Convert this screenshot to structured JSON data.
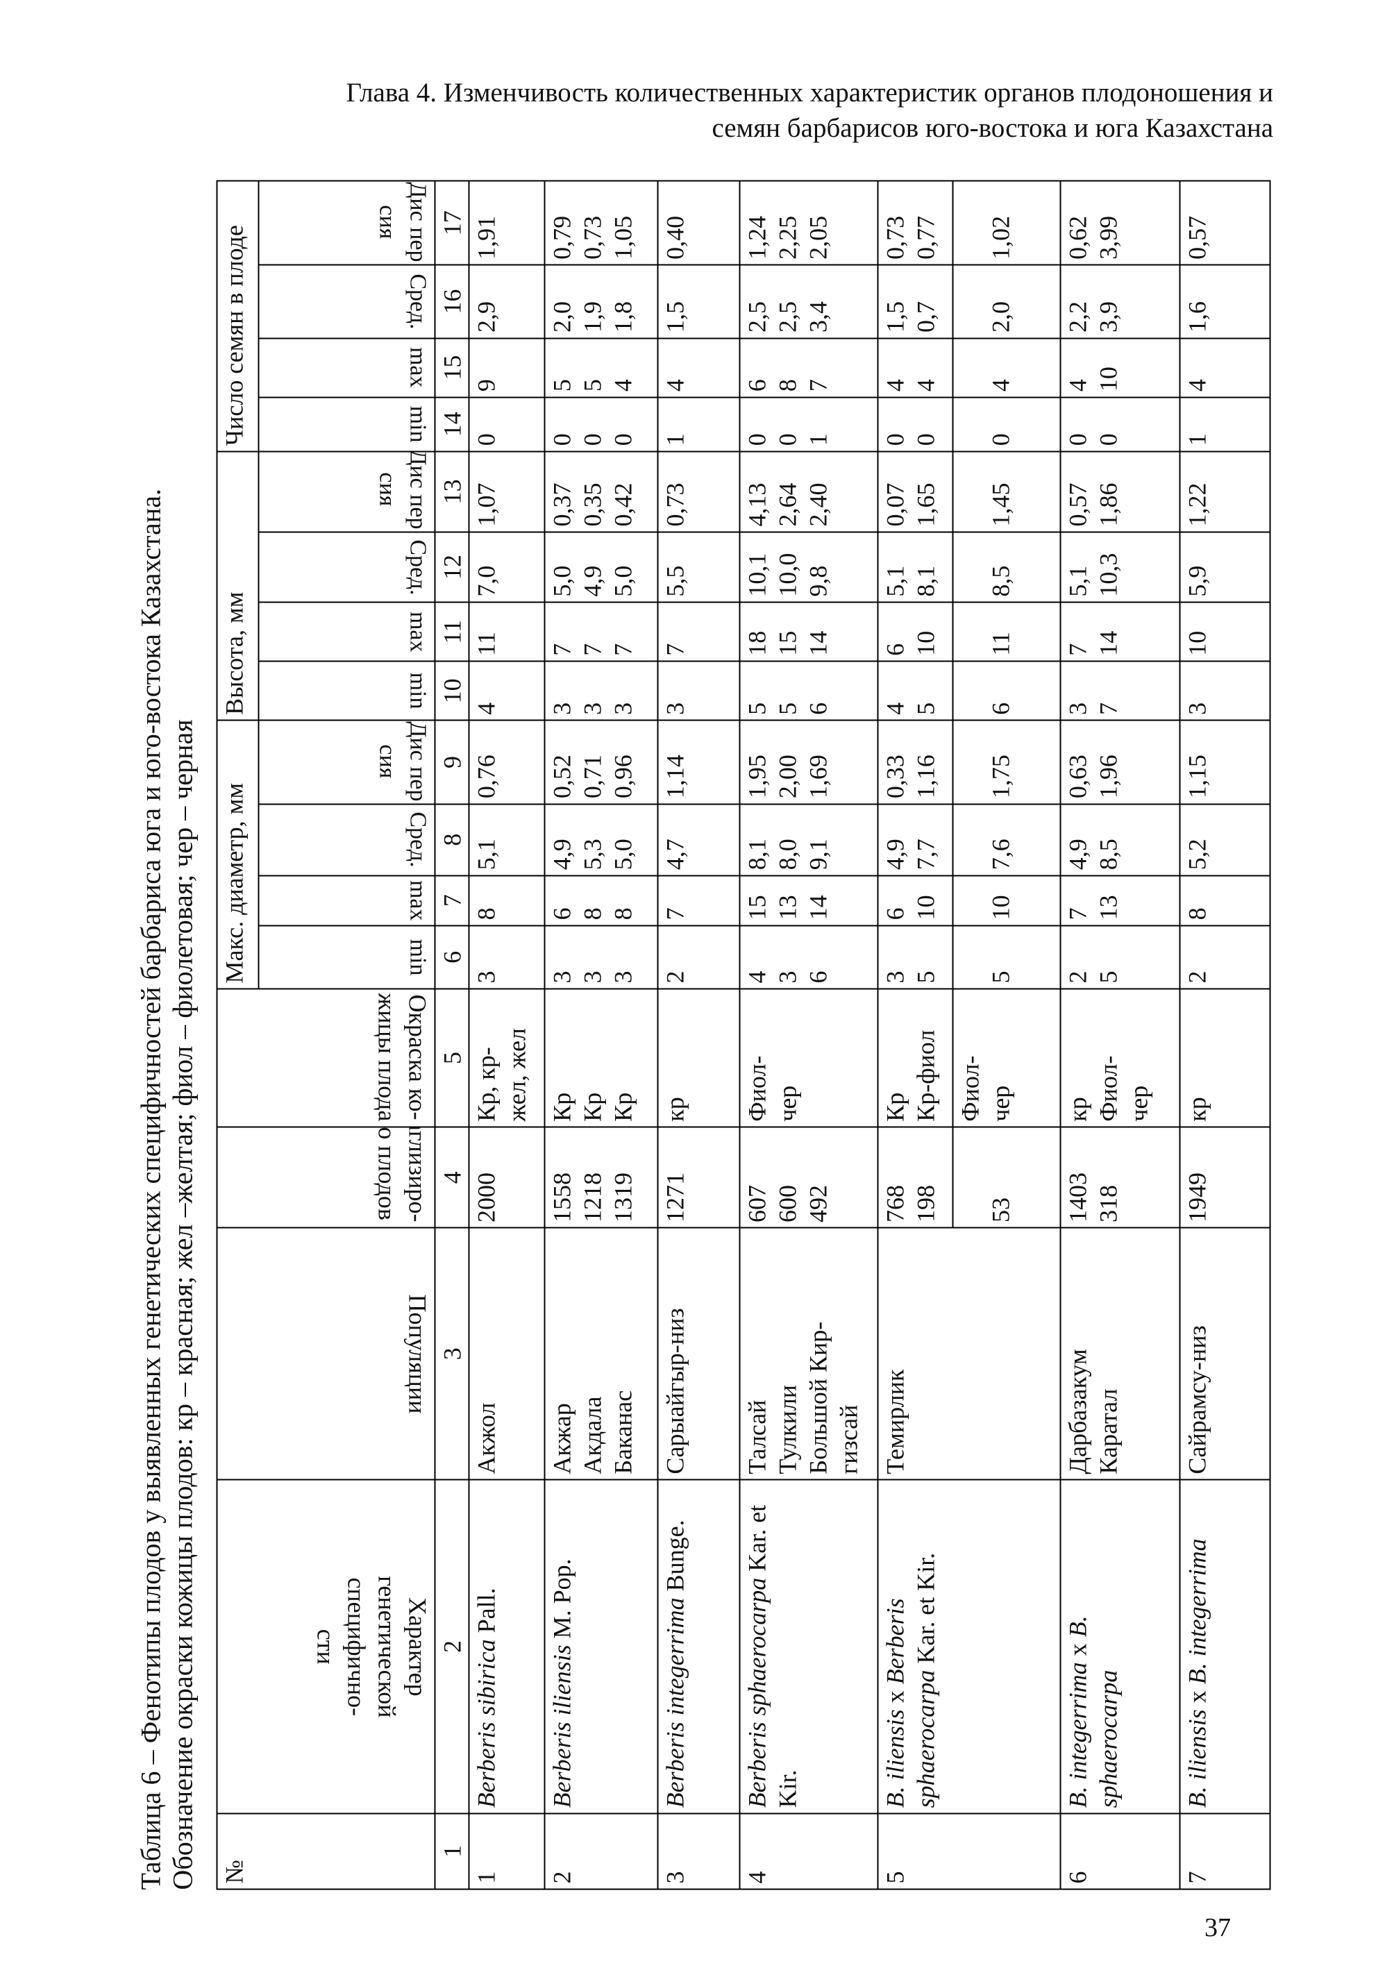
{
  "header": [
    "Глава 4. Изменчивость количественных характеристик органов плодоношения и",
    "семян барбарисов юго-востока и юга Казахстана"
  ],
  "caption": [
    "Таблица 6 – Фенотипы плодов у выявленных генетических специфичностей барбариса юга и юго-востока Казахстана.",
    "Обозначение окраски кожицы плодов: кр – красная; жел –желтая; фиол – фиолетовая; чер – черная"
  ],
  "page_number": "37",
  "table": {
    "head": {
      "no": "№",
      "character": [
        "Характер",
        "генетической",
        "специфично-",
        "сти"
      ],
      "populations": [
        "Популяции"
      ],
      "count": [
        "Праглизиро-",
        "вано плодов"
      ],
      "color": [
        "Окраска ко-",
        "жицы плода"
      ],
      "groups": [
        {
          "title": "Макс. диаметр, мм",
          "sub": [
            [
              "min"
            ],
            [
              "max"
            ],
            [
              "Сред."
            ],
            [
              "Дис пер",
              "сия"
            ]
          ]
        },
        {
          "title": "Высота, мм",
          "sub": [
            [
              "min"
            ],
            [
              "max"
            ],
            [
              "Сред."
            ],
            [
              "Дис пер",
              "сия"
            ]
          ]
        },
        {
          "title": "Число семян в плоде",
          "sub": [
            [
              "min"
            ],
            [
              "max"
            ],
            [
              "Сред."
            ],
            [
              "Дис пер",
              "сия"
            ]
          ]
        }
      ]
    },
    "numbers": [
      1,
      2,
      3,
      4,
      5,
      6,
      7,
      8,
      9,
      10,
      11,
      12,
      13,
      14,
      15,
      16,
      17
    ],
    "rows": [
      {
        "cells": [
          [
            "1"
          ],
          [
            {
              "text": "Berberis sibirica",
              "italic": true
            },
            {
              "text": " Pall.",
              "italic": false
            }
          ],
          [
            "Акжол"
          ],
          [
            "2000"
          ],
          [
            "Кр, кр-",
            "жел, жел"
          ],
          [
            "3"
          ],
          [
            "8"
          ],
          [
            "5,1"
          ],
          [
            "0,76"
          ],
          [
            "4"
          ],
          [
            "11"
          ],
          [
            "7,0"
          ],
          [
            "1,07"
          ],
          [
            "0"
          ],
          [
            "9"
          ],
          [
            "2,9"
          ],
          [
            "1,91"
          ]
        ]
      },
      {
        "cells": [
          [
            "2"
          ],
          [
            {
              "text": "Berberis iliensis",
              "italic": true
            },
            {
              "text": " M. Pop.",
              "italic": false
            }
          ],
          [
            "Акжар",
            "Акдала",
            "Баканас"
          ],
          [
            "1558",
            "1218",
            "1319"
          ],
          [
            "Кр",
            "Кр",
            "Кр"
          ],
          [
            "3",
            "3",
            "3"
          ],
          [
            "6",
            "8",
            "8"
          ],
          [
            "4,9",
            "5,3",
            "5,0"
          ],
          [
            "0,52",
            "0,71",
            "0,96"
          ],
          [
            "3",
            "3",
            "3"
          ],
          [
            "7",
            "7",
            "7"
          ],
          [
            "5,0",
            "4,9",
            "5,0"
          ],
          [
            "0,37",
            "0,35",
            "0,42"
          ],
          [
            "0",
            "0",
            "0"
          ],
          [
            "5",
            "5",
            "4"
          ],
          [
            "2,0",
            "1,9",
            "1,8"
          ],
          [
            "0,79",
            "0,73",
            "1,05"
          ]
        ]
      },
      {
        "cells": [
          [
            "3"
          ],
          [
            {
              "text": "Berberis integerrima",
              "italic": true
            },
            {
              "text": " Bunge.",
              "italic": false
            }
          ],
          [
            "Сарыайгыр-низ"
          ],
          [
            "1271"
          ],
          [
            "кр"
          ],
          [
            "2"
          ],
          [
            "7"
          ],
          [
            "4,7"
          ],
          [
            "1,14"
          ],
          [
            "3"
          ],
          [
            "7"
          ],
          [
            "5,5"
          ],
          [
            "0,73"
          ],
          [
            "1"
          ],
          [
            "4"
          ],
          [
            "1,5"
          ],
          [
            "0,40"
          ]
        ]
      },
      {
        "cells": [
          [
            "4"
          ],
          [
            {
              "text": "Berberis sphaerocarpa",
              "italic": true
            },
            {
              "text": " Kar. et Kir.",
              "italic": false
            }
          ],
          [
            "Талсай",
            "Тулкили",
            "Большой Кир-",
            "гизсай"
          ],
          [
            "607",
            "600",
            "492"
          ],
          [
            "Фиол-",
            "чер"
          ],
          [
            "4",
            "3",
            "6"
          ],
          [
            "15",
            "13",
            "14"
          ],
          [
            "8,1",
            "8,0",
            "9,1"
          ],
          [
            "1,95",
            "2,00",
            "1,69"
          ],
          [
            "5",
            "5",
            "6"
          ],
          [
            "18",
            "15",
            "14"
          ],
          [
            "10,1",
            "10,0",
            "9,8"
          ],
          [
            "4,13",
            "2,64",
            "2,40"
          ],
          [
            "0",
            "0",
            "1"
          ],
          [
            "6",
            "8",
            "7"
          ],
          [
            "2,5",
            "2,5",
            "3,4"
          ],
          [
            "1,24",
            "2,25",
            "2,05"
          ]
        ]
      },
      {
        "cells": [
          [
            "5"
          ],
          [
            {
              "text": "B. iliensis",
              "italic": true
            },
            {
              "text": " x ",
              "italic": false
            },
            {
              "text": "Berberis sphaerocarpa",
              "italic": true
            },
            {
              "text": " Kar. et Kir.",
              "italic": false
            }
          ],
          [
            "Темирлик"
          ],
          [
            "768",
            "198"
          ],
          [
            "Кр",
            "Кр-фиол"
          ],
          [
            "3",
            "5"
          ],
          [
            "6",
            "10"
          ],
          [
            "4,9",
            "7,7"
          ],
          [
            "0,33",
            "1,16"
          ],
          [
            "4",
            "5"
          ],
          [
            "6",
            "10"
          ],
          [
            "5,1",
            "8,1"
          ],
          [
            "0,07",
            "1,65"
          ],
          [
            "0",
            "0"
          ],
          [
            "4",
            "4"
          ],
          [
            "1,5",
            "0,7"
          ],
          [
            "0,73",
            "0,77"
          ]
        ],
        "more": [
          [
            "53"
          ],
          [
            "Фиол-",
            "чер"
          ],
          [
            "5"
          ],
          [
            "10"
          ],
          [
            "7,6"
          ],
          [
            "1,75"
          ],
          [
            "6"
          ],
          [
            "11"
          ],
          [
            "8,5"
          ],
          [
            "1,45"
          ],
          [
            "0"
          ],
          [
            "4"
          ],
          [
            "2,0"
          ],
          [
            "1,02"
          ]
        ]
      },
      {
        "cells": [
          [
            "6"
          ],
          [
            {
              "text": "B. integerrima",
              "italic": true
            },
            {
              "text": " x ",
              "italic": false
            },
            {
              "text": "B. sphaerocarpa",
              "italic": true
            }
          ],
          [
            "Дарбазакум",
            "Каратал"
          ],
          [
            "1403",
            "318"
          ],
          [
            "кр",
            "Фиол-",
            "чер"
          ],
          [
            "2",
            "5"
          ],
          [
            "7",
            "13"
          ],
          [
            "4,9",
            "8,5"
          ],
          [
            "0,63",
            "1,96"
          ],
          [
            "3",
            "7"
          ],
          [
            "7",
            "14"
          ],
          [
            "5,1",
            "10,3"
          ],
          [
            "0,57",
            "1,86"
          ],
          [
            "0",
            "0"
          ],
          [
            "4",
            "10"
          ],
          [
            "2,2",
            "3,9"
          ],
          [
            "0,62",
            "3,99"
          ]
        ]
      },
      {
        "cells": [
          [
            "7"
          ],
          [
            {
              "text": "B. iliensis",
              "italic": true
            },
            {
              "text": " x ",
              "italic": false
            },
            {
              "text": "B. integerrima",
              "italic": true
            }
          ],
          [
            "Сайрамсу-низ"
          ],
          [
            "1949"
          ],
          [
            "кр"
          ],
          [
            "2"
          ],
          [
            "8"
          ],
          [
            "5,2"
          ],
          [
            "1,15"
          ],
          [
            "3"
          ],
          [
            "10"
          ],
          [
            "5,9"
          ],
          [
            "1,22"
          ],
          [
            "1"
          ],
          [
            "4"
          ],
          [
            "1,6"
          ],
          [
            "0,57"
          ]
        ]
      }
    ]
  }
}
